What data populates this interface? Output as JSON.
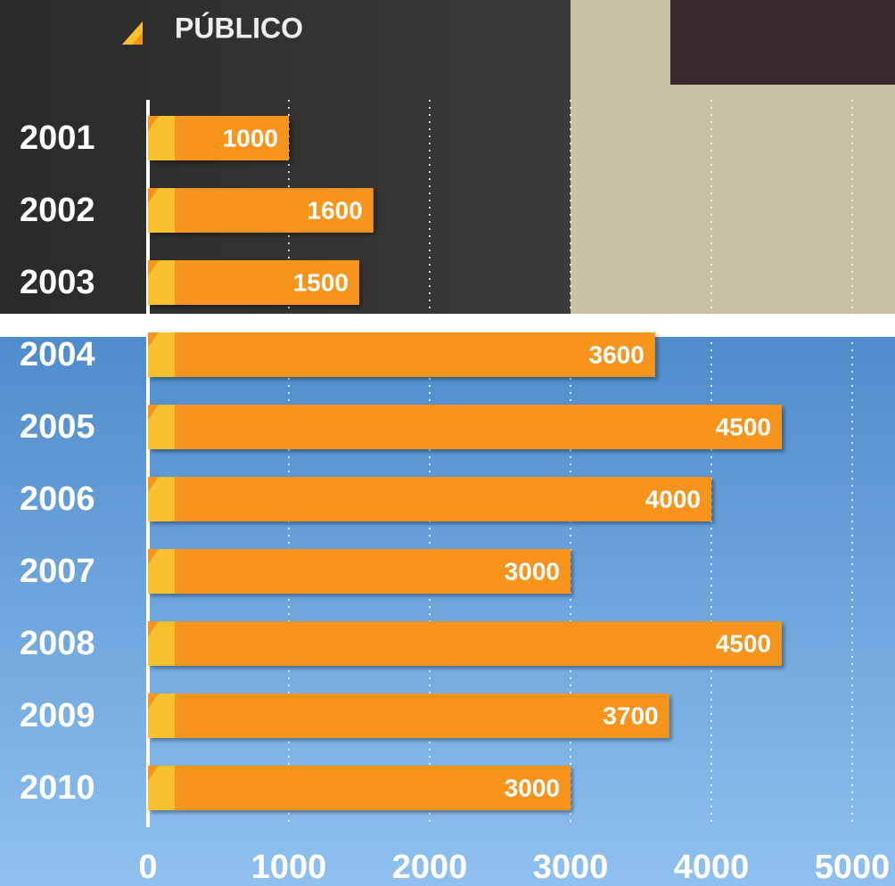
{
  "chart_data": {
    "type": "bar",
    "orientation": "horizontal",
    "categories": [
      "2001",
      "2002",
      "2003",
      "2004",
      "2005",
      "2006",
      "2007",
      "2008",
      "2009",
      "2010"
    ],
    "series": [
      {
        "name": "PÚBLICO",
        "color": "#f7941d",
        "values": [
          1000,
          1600,
          1500,
          3600,
          4500,
          4000,
          3000,
          4500,
          3700,
          3000
        ]
      }
    ],
    "xlim": [
      0,
      5000
    ],
    "xticks": [
      0,
      1000,
      2000,
      3000,
      4000,
      5000
    ],
    "grid": true,
    "legend": "top-left"
  }
}
